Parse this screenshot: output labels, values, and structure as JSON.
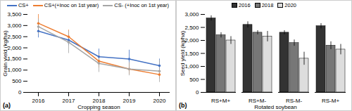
{
  "chart_data": [
    {
      "type": "line",
      "title": "(a)",
      "x_label": "Cropping season",
      "y_label": "Grain yield (kg/ha)",
      "categories": [
        "2016",
        "2017",
        "2018",
        "2019",
        "2020"
      ],
      "series": [
        {
          "name": "CS+",
          "color": "#4472c4",
          "marker": "circle",
          "values": [
            2750,
            2350,
            1600,
            1500,
            1200
          ],
          "errors": [
            300,
            250,
            350,
            400,
            300
          ]
        },
        {
          "name": "CS+(+Inoc on 1st year)",
          "color": "#ed7d31",
          "marker": "circle",
          "values": [
            3100,
            2500,
            1400,
            1050,
            800
          ],
          "errors": [
            450,
            300,
            300,
            250,
            200
          ]
        },
        {
          "name": "CS- (+Inoc on 1st year)",
          "color": "#a5a5a5",
          "marker": "circle",
          "values": [
            2950,
            2250,
            1300,
            1050,
            950
          ],
          "errors": [
            350,
            500,
            400,
            300,
            500
          ]
        }
      ],
      "ylim": [
        0,
        3500
      ],
      "yticks": [
        0,
        500,
        1000,
        1500,
        2000,
        2500,
        3000,
        3500
      ],
      "grid": false,
      "legend": "top"
    },
    {
      "type": "bar",
      "title": "(b)",
      "x_label": "Rotated soybean",
      "y_label": "Seed yield (kg/ha)",
      "categories": [
        "RS+M+",
        "RS+M-",
        "RS-M-",
        "RS-M+"
      ],
      "series": [
        {
          "name": "2016",
          "color": "#333333",
          "values": [
            2850,
            2600,
            2300,
            2550
          ],
          "errors": [
            100,
            120,
            80,
            100
          ]
        },
        {
          "name": "2018",
          "color": "#777777",
          "values": [
            2200,
            2300,
            1900,
            1800
          ],
          "errors": [
            100,
            80,
            120,
            150
          ]
        },
        {
          "name": "2020",
          "color": "#dddddd",
          "values": [
            2000,
            2150,
            1300,
            1650
          ],
          "errors": [
            150,
            200,
            250,
            200
          ]
        }
      ],
      "ylim": [
        0,
        3000
      ],
      "yticks": [
        0,
        500,
        1000,
        1500,
        2000,
        2500,
        3000
      ],
      "grid": false,
      "legend": "top"
    }
  ]
}
